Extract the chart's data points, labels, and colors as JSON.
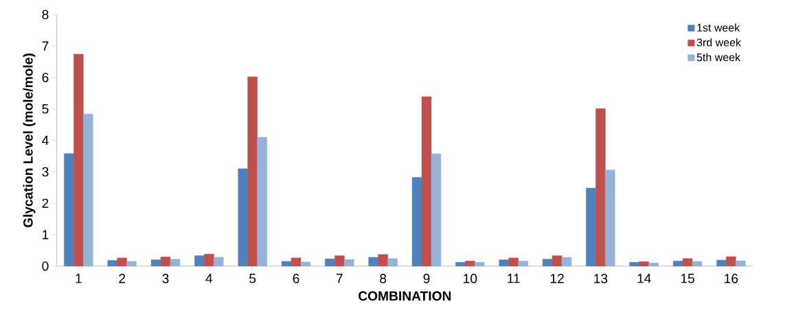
{
  "chart_data": {
    "type": "bar",
    "xlabel": "COMBINATION",
    "ylabel": "Glycation Level (mole/mole)",
    "categories": [
      "1",
      "2",
      "3",
      "4",
      "5",
      "6",
      "7",
      "8",
      "9",
      "10",
      "11",
      "12",
      "13",
      "14",
      "15",
      "16"
    ],
    "series": [
      {
        "name": "1st week",
        "color": "#4f81bd",
        "values": [
          3.58,
          0.18,
          0.2,
          0.33,
          3.1,
          0.15,
          0.23,
          0.28,
          2.82,
          0.12,
          0.2,
          0.22,
          2.48,
          0.12,
          0.16,
          0.19
        ]
      },
      {
        "name": "3rd week",
        "color": "#c0504d",
        "values": [
          6.74,
          0.26,
          0.29,
          0.38,
          6.02,
          0.26,
          0.33,
          0.37,
          5.39,
          0.16,
          0.26,
          0.33,
          5.01,
          0.14,
          0.24,
          0.3
        ]
      },
      {
        "name": "5th week",
        "color": "#95b3d7",
        "values": [
          4.84,
          0.15,
          0.22,
          0.28,
          4.1,
          0.13,
          0.21,
          0.24,
          3.57,
          0.12,
          0.16,
          0.28,
          3.06,
          0.1,
          0.15,
          0.17
        ]
      }
    ],
    "ylim": [
      0,
      8
    ],
    "yticks": [
      0,
      1,
      2,
      3,
      4,
      5,
      6,
      7,
      8
    ],
    "grid": false,
    "legend": "top right"
  }
}
